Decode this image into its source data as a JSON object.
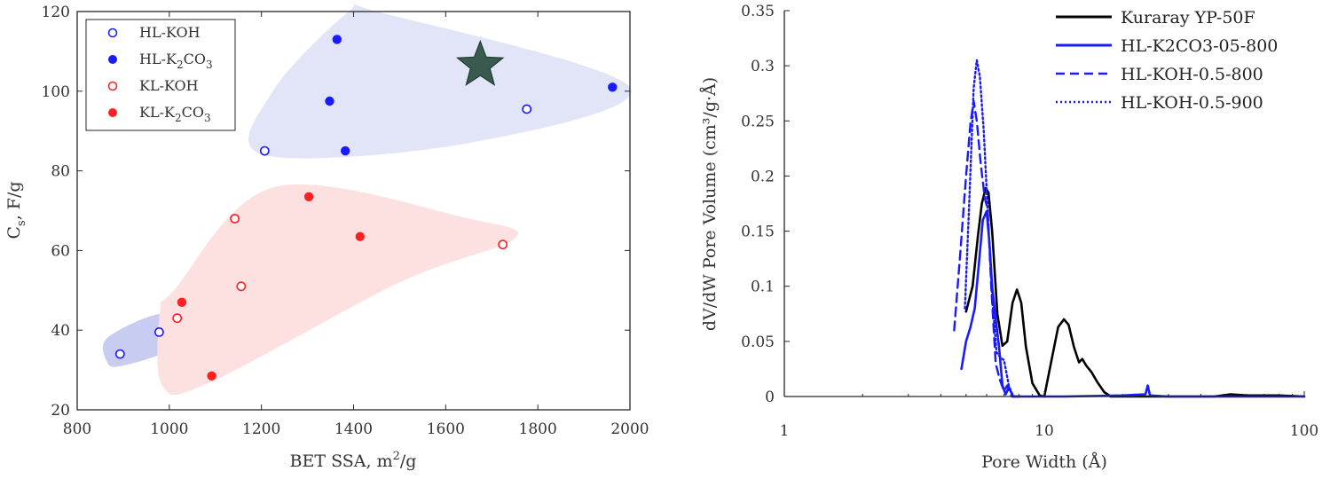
{
  "chart_data": [
    {
      "type": "scatter",
      "xlabel": "BET SSA, m²/g",
      "xlabel_main": "BET SSA, m",
      "xlabel_sup": "2",
      "xlabel_tail": "/g",
      "ylabel": "Cs, F/g",
      "ylabel_main": "C",
      "ylabel_sub": "s",
      "ylabel_tail": ", F/g",
      "xlim": [
        800,
        2000
      ],
      "ylim": [
        20,
        120
      ],
      "xticks": [
        800,
        1000,
        1200,
        1400,
        1600,
        1800,
        2000
      ],
      "yticks": [
        20,
        40,
        60,
        80,
        100,
        120
      ],
      "legend_position": "top-left",
      "series": [
        {
          "name": "HL-KOH",
          "label_main": "HL-KOH",
          "label_sub": "",
          "label_tail": "",
          "color": "#1a1aff",
          "marker": "open-circle",
          "points": [
            [
              893,
              34
            ],
            [
              978,
              39.5
            ],
            [
              1207,
              85
            ],
            [
              1776,
              95.5
            ]
          ]
        },
        {
          "name": "HL-K2CO3",
          "label_main": "HL-K",
          "label_sub": "2",
          "label_tail": "CO",
          "label_sub2": "3",
          "color": "#1a1aff",
          "marker": "filled-circle",
          "points": [
            [
              1348,
              97.5
            ],
            [
              1364,
              113
            ],
            [
              1382,
              85
            ],
            [
              1962,
              101
            ]
          ]
        },
        {
          "name": "KL-KOH",
          "label_main": "KL-KOH",
          "label_sub": "",
          "label_tail": "",
          "color": "#ff2020",
          "marker": "open-circle",
          "points": [
            [
              1017,
              43
            ],
            [
              1142,
              68
            ],
            [
              1156,
              51
            ],
            [
              1724,
              61.5
            ]
          ]
        },
        {
          "name": "KL-K2CO3",
          "label_main": "KL-K",
          "label_sub": "2",
          "label_tail": "CO",
          "label_sub2": "3",
          "color": "#ff2020",
          "marker": "filled-circle",
          "points": [
            [
              1027,
              47
            ],
            [
              1092,
              28.5
            ],
            [
              1303,
              73.5
            ],
            [
              1414,
              63.5
            ]
          ]
        }
      ],
      "star_point": [
        1675,
        106.5
      ],
      "star_color": "#3a5a50",
      "regions": [
        {
          "name": "blue-region-large",
          "color": "#e2e4f8",
          "points": [
            [
              1205,
              84
            ],
            [
              1650,
              87
            ],
            [
              2010,
              101
            ],
            [
              1450,
              121
            ],
            [
              1390,
              120
            ],
            [
              1225,
              100
            ]
          ]
        },
        {
          "name": "blue-region-small",
          "color": "#c9ccf1",
          "points": [
            [
              865,
              38
            ],
            [
              975,
              44
            ],
            [
              1005,
              40
            ],
            [
              1000,
              35
            ],
            [
              895,
              31
            ],
            [
              865,
              32
            ]
          ]
        },
        {
          "name": "red-region",
          "color": "#fde0e0",
          "points": [
            [
              1010,
              50
            ],
            [
              1230,
              76
            ],
            [
              1650,
              68
            ],
            [
              1750,
              63
            ],
            [
              1500,
              52
            ],
            [
              1090,
              27
            ],
            [
              985,
              26
            ],
            [
              980,
              45
            ]
          ]
        }
      ]
    },
    {
      "type": "line",
      "xlabel": "Pore Width (Å)",
      "ylabel": "dV/dW Pore Volume (cm³/g·Å)",
      "x_scale": "log",
      "xlim": [
        1,
        100
      ],
      "ylim": [
        0,
        0.35
      ],
      "xticks": [
        "1",
        "10",
        "100"
      ],
      "yticks": [
        "0",
        "0.05",
        "0.1",
        "0.15",
        "0.2",
        "0.25",
        "0.3",
        "0.35"
      ],
      "legend_position": "top-right",
      "series": [
        {
          "name": "Kuraray YP-50F",
          "color": "#000000",
          "dash": "solid",
          "x": [
            5.0,
            5.3,
            5.55,
            5.75,
            5.95,
            6.1,
            6.3,
            6.6,
            6.9,
            7.2,
            7.55,
            7.85,
            8.15,
            8.5,
            9.0,
            9.6,
            10.0,
            10.6,
            11.3,
            11.9,
            12.4,
            13.0,
            13.6,
            14.0,
            14.5,
            15.2,
            16.0,
            17.0,
            18.0,
            25,
            45,
            52,
            60,
            80,
            100
          ],
          "y": [
            0.077,
            0.1,
            0.145,
            0.175,
            0.189,
            0.185,
            0.15,
            0.075,
            0.046,
            0.05,
            0.085,
            0.097,
            0.085,
            0.045,
            0.012,
            0.001,
            0.0,
            0.03,
            0.063,
            0.07,
            0.065,
            0.045,
            0.031,
            0.034,
            0.028,
            0.022,
            0.013,
            0.004,
            0.0,
            0.0,
            0.0,
            0.002,
            0.001,
            0.001,
            0.0
          ]
        },
        {
          "name": "HL-K2CO3-05-800",
          "color": "#1a1aff",
          "dash": "solid",
          "x": [
            4.8,
            5.0,
            5.2,
            5.4,
            5.6,
            5.8,
            6.0,
            6.15,
            6.3,
            6.5,
            6.7,
            6.9,
            7.1,
            7.3,
            7.6,
            8.0,
            12,
            20,
            24.5,
            25,
            25.5,
            30,
            50,
            100
          ],
          "y": [
            0.025,
            0.05,
            0.063,
            0.08,
            0.12,
            0.16,
            0.168,
            0.14,
            0.1,
            0.07,
            0.045,
            0.01,
            0.002,
            0.008,
            0.0,
            0.0,
            0.0,
            0.001,
            0.002,
            0.01,
            0.001,
            0.0,
            0.0,
            0.0
          ]
        },
        {
          "name": "HL-KOH-0.5-800",
          "color": "#1a1aff",
          "dash": "dashed",
          "x": [
            4.5,
            4.75,
            5.0,
            5.2,
            5.35,
            5.5,
            5.7,
            5.9,
            6.05,
            6.25,
            6.5,
            6.75,
            7.0,
            7.2,
            7.5,
            8.0
          ],
          "y": [
            0.06,
            0.13,
            0.2,
            0.248,
            0.268,
            0.25,
            0.21,
            0.18,
            0.17,
            0.1,
            0.03,
            0.015,
            0.005,
            0.01,
            0.0,
            0.0
          ]
        },
        {
          "name": "HL-KOH-0.5-900",
          "color": "#1a1aff",
          "dash": "dotted",
          "x": [
            4.95,
            5.15,
            5.35,
            5.5,
            5.65,
            5.85,
            6.05,
            6.3,
            6.55,
            6.8,
            7.0,
            7.3,
            7.6,
            8.0
          ],
          "y": [
            0.08,
            0.18,
            0.28,
            0.305,
            0.29,
            0.24,
            0.17,
            0.09,
            0.04,
            0.035,
            0.033,
            0.01,
            0.0,
            0.0
          ]
        }
      ]
    }
  ]
}
